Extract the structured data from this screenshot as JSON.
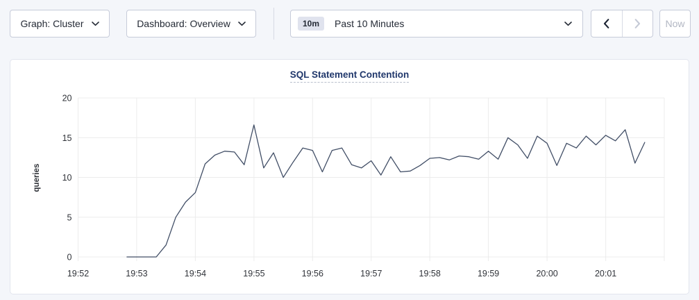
{
  "toolbar": {
    "graph_dropdown": {
      "label": "Graph: Cluster",
      "icon": "chevron-down-icon"
    },
    "dashboard_dropdown": {
      "label": "Dashboard: Overview",
      "icon": "chevron-down-icon"
    },
    "time_picker": {
      "badge": "10m",
      "label": "Past 10 Minutes",
      "icon": "chevron-down-icon"
    },
    "history": {
      "back_icon": "chevron-left-icon",
      "forward_icon": "chevron-right-icon",
      "forward_disabled": true
    },
    "now_button": {
      "label": "Now",
      "disabled": true
    }
  },
  "chart_data": {
    "type": "line",
    "title": "SQL Statement Contention",
    "xlabel": "",
    "ylabel": "queries",
    "ylim": [
      0,
      20
    ],
    "y_ticks": [
      0,
      5,
      10,
      15,
      20
    ],
    "x_ticks": [
      "19:52",
      "19:53",
      "19:54",
      "19:55",
      "19:56",
      "19:57",
      "19:58",
      "19:59",
      "20:00",
      "20:01"
    ],
    "x_minutes_span": 10,
    "grid": true,
    "legend_position": "none",
    "colors": {
      "line": "#414e66",
      "grid": "#ececec",
      "axis_text": "#303339",
      "title": "#20376b",
      "page_background": "#f4f6fa",
      "card_background": "#ffffff"
    },
    "series": [
      {
        "name": "SQL Statement Contention",
        "unit": "queries",
        "start_time": "19:52:50",
        "interval_seconds": 10,
        "values": [
          0,
          0,
          0,
          0,
          1.5,
          5,
          6.9,
          8.1,
          11.7,
          12.8,
          13.3,
          13.2,
          11.6,
          16.6,
          11.2,
          13.1,
          10,
          11.9,
          13.7,
          13.4,
          10.7,
          13.4,
          13.7,
          11.6,
          11.2,
          12.1,
          10.3,
          12.6,
          10.7,
          10.8,
          11.5,
          12.4,
          12.5,
          12.2,
          12.7,
          12.6,
          12.3,
          13.3,
          12.3,
          15,
          14.1,
          12.4,
          15.2,
          14.3,
          11.5,
          14.3,
          13.7,
          15.2,
          14.1,
          15.3,
          14.6,
          16,
          11.8,
          14.4
        ]
      }
    ]
  }
}
